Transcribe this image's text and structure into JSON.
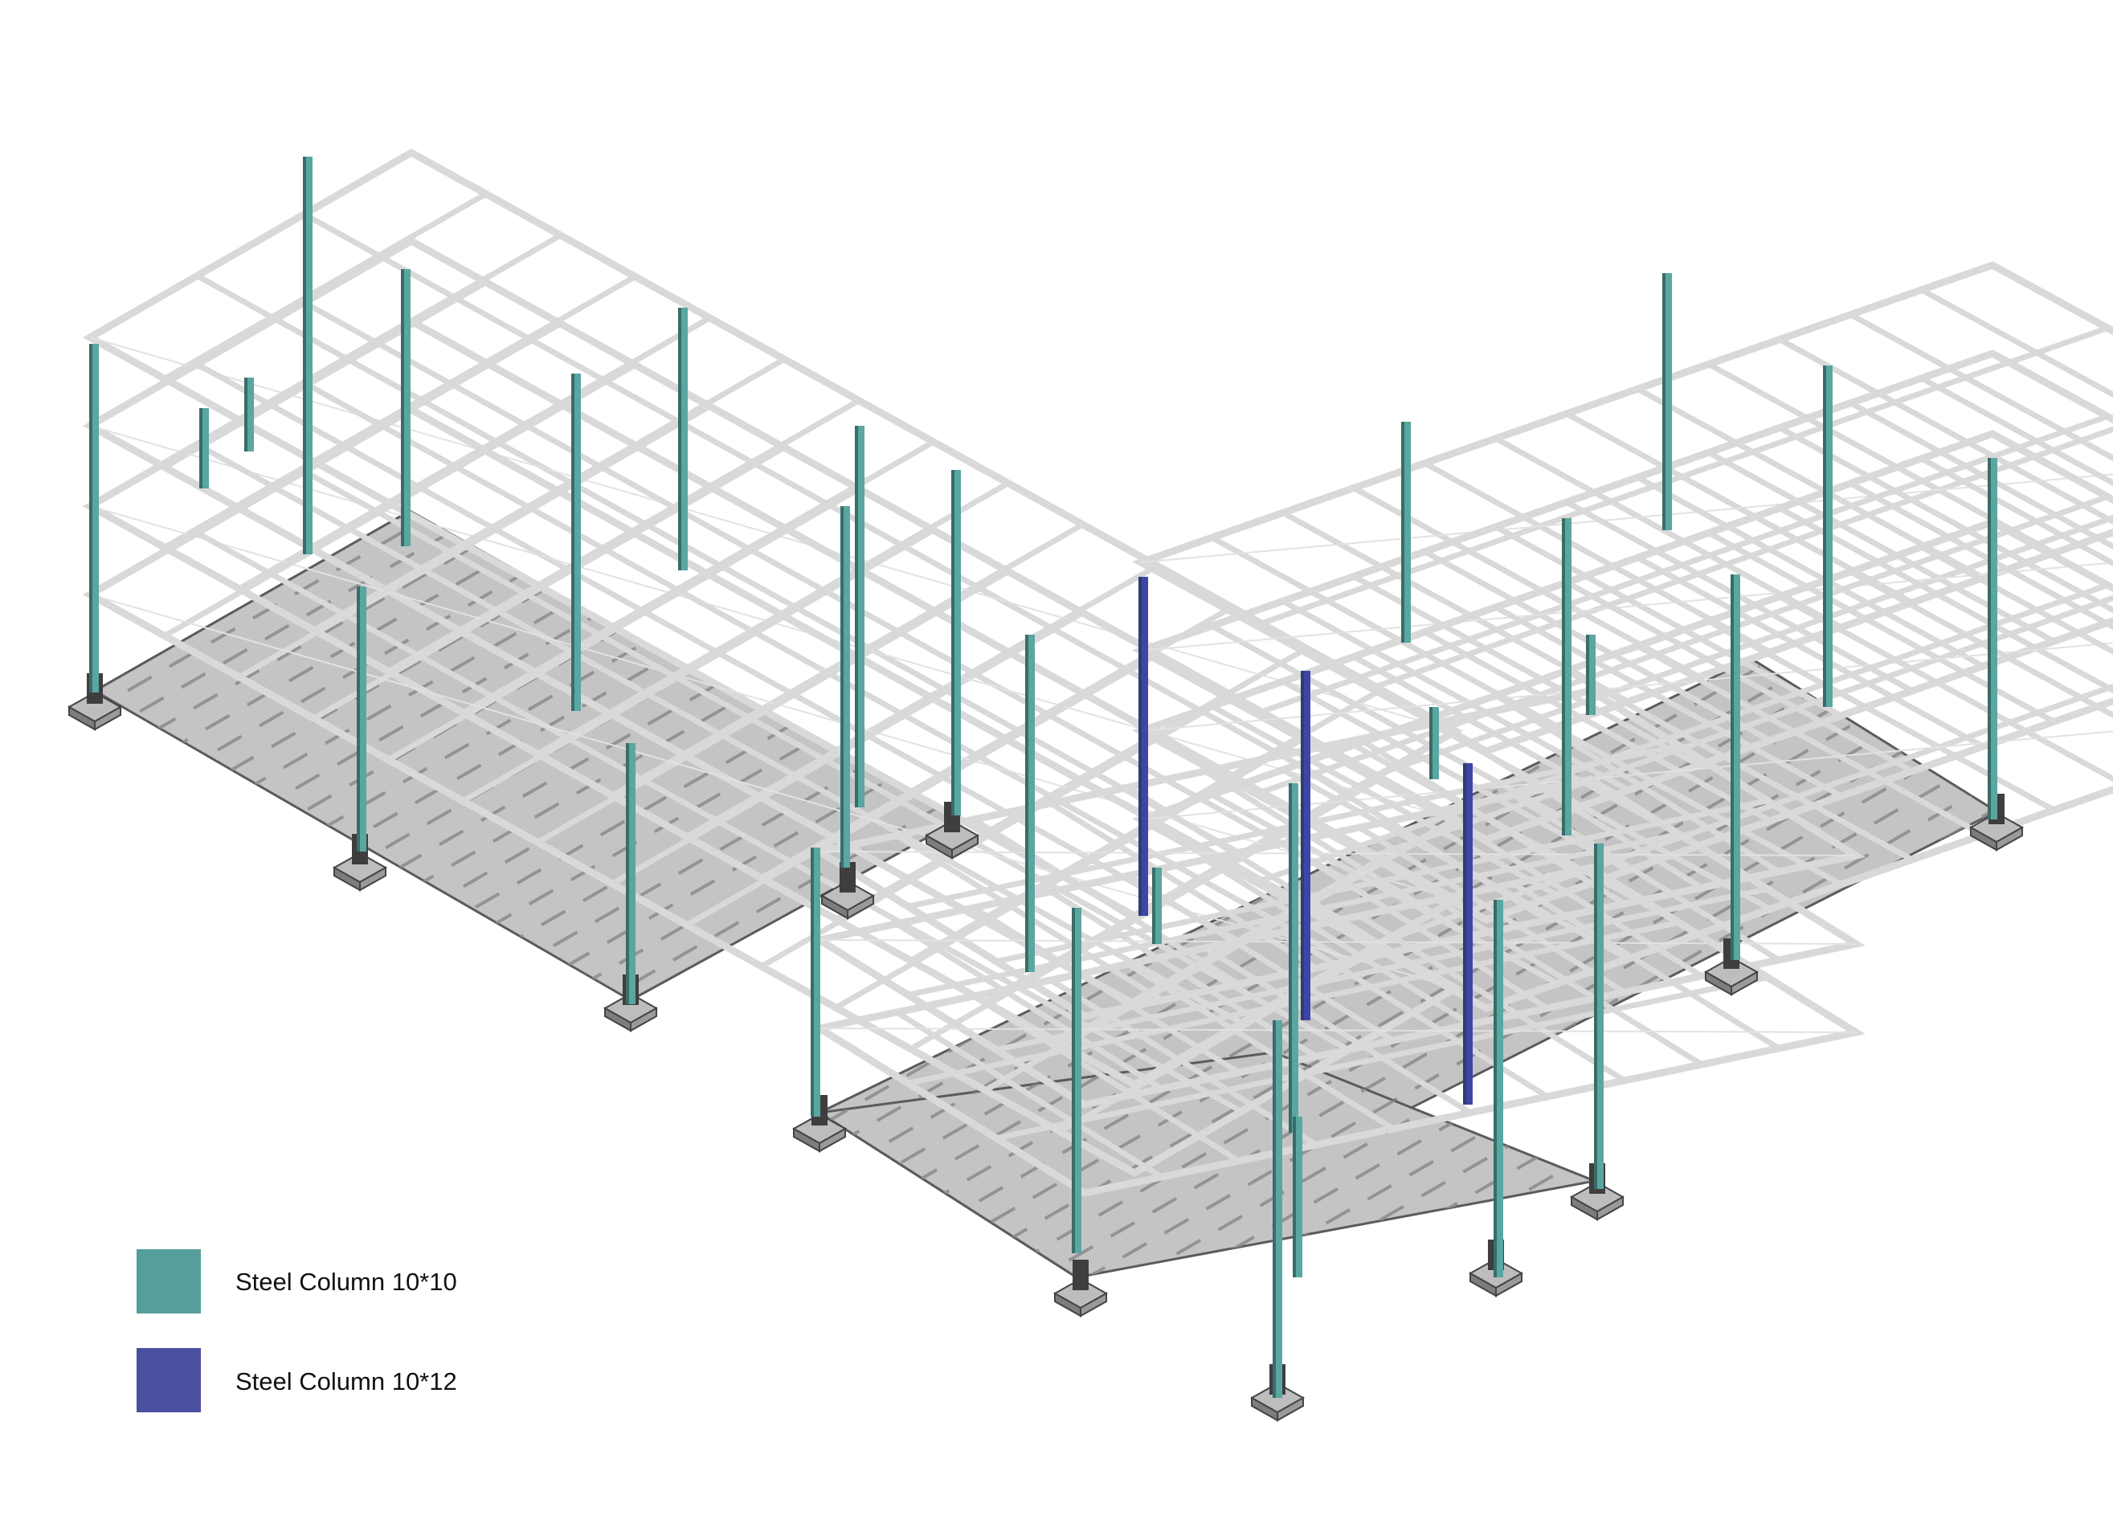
{
  "legend": [
    {
      "label": "Steel Column 10*10",
      "color": "#559e9b"
    },
    {
      "label": "Steel Column 10*12",
      "color": "#4a4f9f"
    }
  ],
  "colors": {
    "column_10x10": "#5aa6a1",
    "column_10x12": "#3d45a6",
    "beam": "#d9d9d9",
    "slab": "#c4c4c4",
    "footing": "#8a8a8a"
  }
}
